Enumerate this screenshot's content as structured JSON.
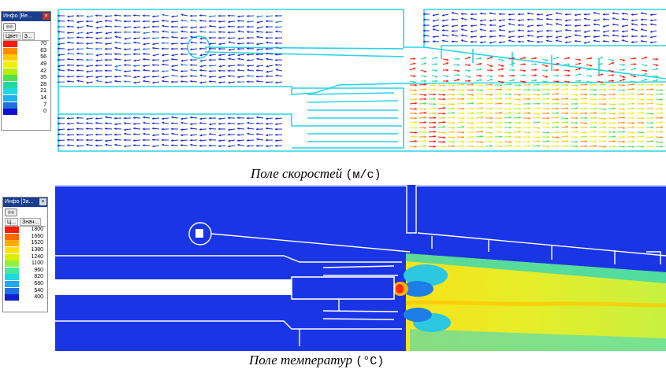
{
  "velocity": {
    "legend_title": "Инфо [Ве...",
    "legend_cols": [
      "Цвет",
      "З..."
    ],
    "legend_rows": [
      {
        "value": "70",
        "color": "#ff1a00"
      },
      {
        "value": "63",
        "color": "#ff8c00"
      },
      {
        "value": "56",
        "color": "#ffc800"
      },
      {
        "value": "49",
        "color": "#eef000"
      },
      {
        "value": "42",
        "color": "#b4f000"
      },
      {
        "value": "35",
        "color": "#50e050"
      },
      {
        "value": "28",
        "color": "#20d8a0"
      },
      {
        "value": "21",
        "color": "#20d8e0"
      },
      {
        "value": "14",
        "color": "#20b0f0"
      },
      {
        "value": "7",
        "color": "#2070e0"
      },
      {
        "value": "0",
        "color": "#1010d0"
      }
    ],
    "caption_text": "Поле скоростей",
    "caption_unit": "(м/с)"
  },
  "temperature": {
    "legend_title": "Инфо [За...",
    "legend_cols": [
      "Ц...",
      "Знач..."
    ],
    "legend_rows": [
      {
        "value": "1800",
        "color": "#ff1a00"
      },
      {
        "value": "1660",
        "color": "#ff6a00"
      },
      {
        "value": "1520",
        "color": "#ffaa00"
      },
      {
        "value": "1380",
        "color": "#ffe000"
      },
      {
        "value": "1240",
        "color": "#d8f000"
      },
      {
        "value": "1100",
        "color": "#90f040"
      },
      {
        "value": "960",
        "color": "#40e8a0"
      },
      {
        "value": "820",
        "color": "#20d8e0"
      },
      {
        "value": "680",
        "color": "#20a8f0"
      },
      {
        "value": "540",
        "color": "#2070e8"
      },
      {
        "value": "400",
        "color": "#1020d0"
      }
    ],
    "caption_text": "Поле температур",
    "caption_unit": "(°C)"
  }
}
